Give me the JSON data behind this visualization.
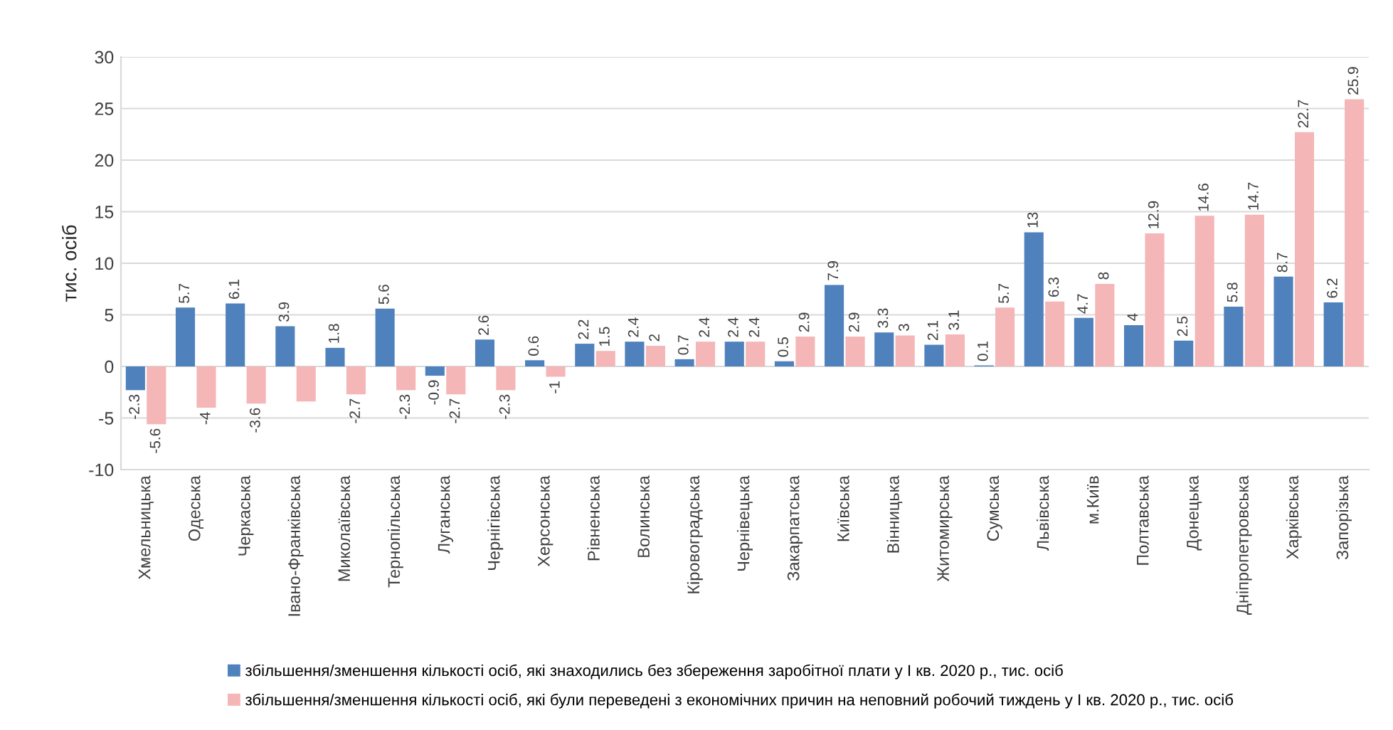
{
  "chart_data": {
    "type": "bar",
    "ylabel": "тис. осіб",
    "categories": [
      "Хмельницька",
      "Одеська",
      "Черкаська",
      "Івано-Франківська",
      "Миколаївська",
      "Тернопільська",
      "Луганська",
      "Чернігівська",
      "Херсонська",
      "Рівненська",
      "Волинська",
      "Кіровоградська",
      "Чернівецька",
      "Закарпатська",
      "Київська",
      "Вінницька",
      "Житомирська",
      "Сумська",
      "Львівська",
      "м.Київ",
      "Полтавська",
      "Донецька",
      "Дніпропетровська",
      "Харківська",
      "Запорізька"
    ],
    "series": [
      {
        "name": "збільшення/зменшення кількості осіб, які знаходились без збереження заробітної плати у І кв. 2020 р., тис. осіб",
        "color": "#4f81bd",
        "values": [
          -2.3,
          5.7,
          6.1,
          3.9,
          1.8,
          5.6,
          -0.9,
          2.6,
          0.6,
          2.2,
          2.4,
          0.7,
          2.4,
          0.5,
          7.9,
          3.3,
          2.1,
          0.1,
          13,
          4.7,
          4,
          2.5,
          5.8,
          8.7,
          6.2
        ],
        "value_labels": [
          "-2.3",
          "5.7",
          "6.1",
          "3.9",
          "1.8",
          "5.6",
          "-0.9",
          "2.6",
          "0.6",
          "2.2",
          "2.4",
          "0.7",
          "2.4",
          "0.5",
          "7.9",
          "3.3",
          "2.1",
          "0.1",
          "13",
          "4.7",
          "4",
          "2.5",
          "5.8",
          "8.7",
          "6.2"
        ]
      },
      {
        "name": "збільшення/зменшення кількості осіб, які були переведені з економічних причин на неповний робочий тиждень у І кв. 2020 р., тис. осіб",
        "color": "#f4b6b6",
        "values": [
          -5.6,
          -4,
          -3.6,
          -3.4,
          -2.7,
          -2.3,
          -2.7,
          -2.3,
          -1,
          1.5,
          2,
          2.4,
          2.4,
          2.9,
          2.9,
          3,
          3.1,
          5.7,
          6.3,
          8,
          12.9,
          14.6,
          14.7,
          22.7,
          25.9
        ],
        "value_labels": [
          "-5.6",
          "-4",
          "-3.6",
          null,
          "-2.7",
          "-2.3",
          "-2.7",
          "-2.3",
          "-1",
          "1.5",
          "2",
          "2.4",
          "2.4",
          "2.9",
          "2.9",
          "3",
          "3.1",
          "5.7",
          "6.3",
          "8",
          "12.9",
          "14.6",
          "14.7",
          "22.7",
          "25.9"
        ]
      }
    ],
    "ylim": [
      -10,
      30
    ],
    "yticks": [
      -10,
      -5,
      0,
      5,
      10,
      15,
      20,
      25,
      30
    ],
    "grid": "y",
    "legend": "bottom"
  }
}
